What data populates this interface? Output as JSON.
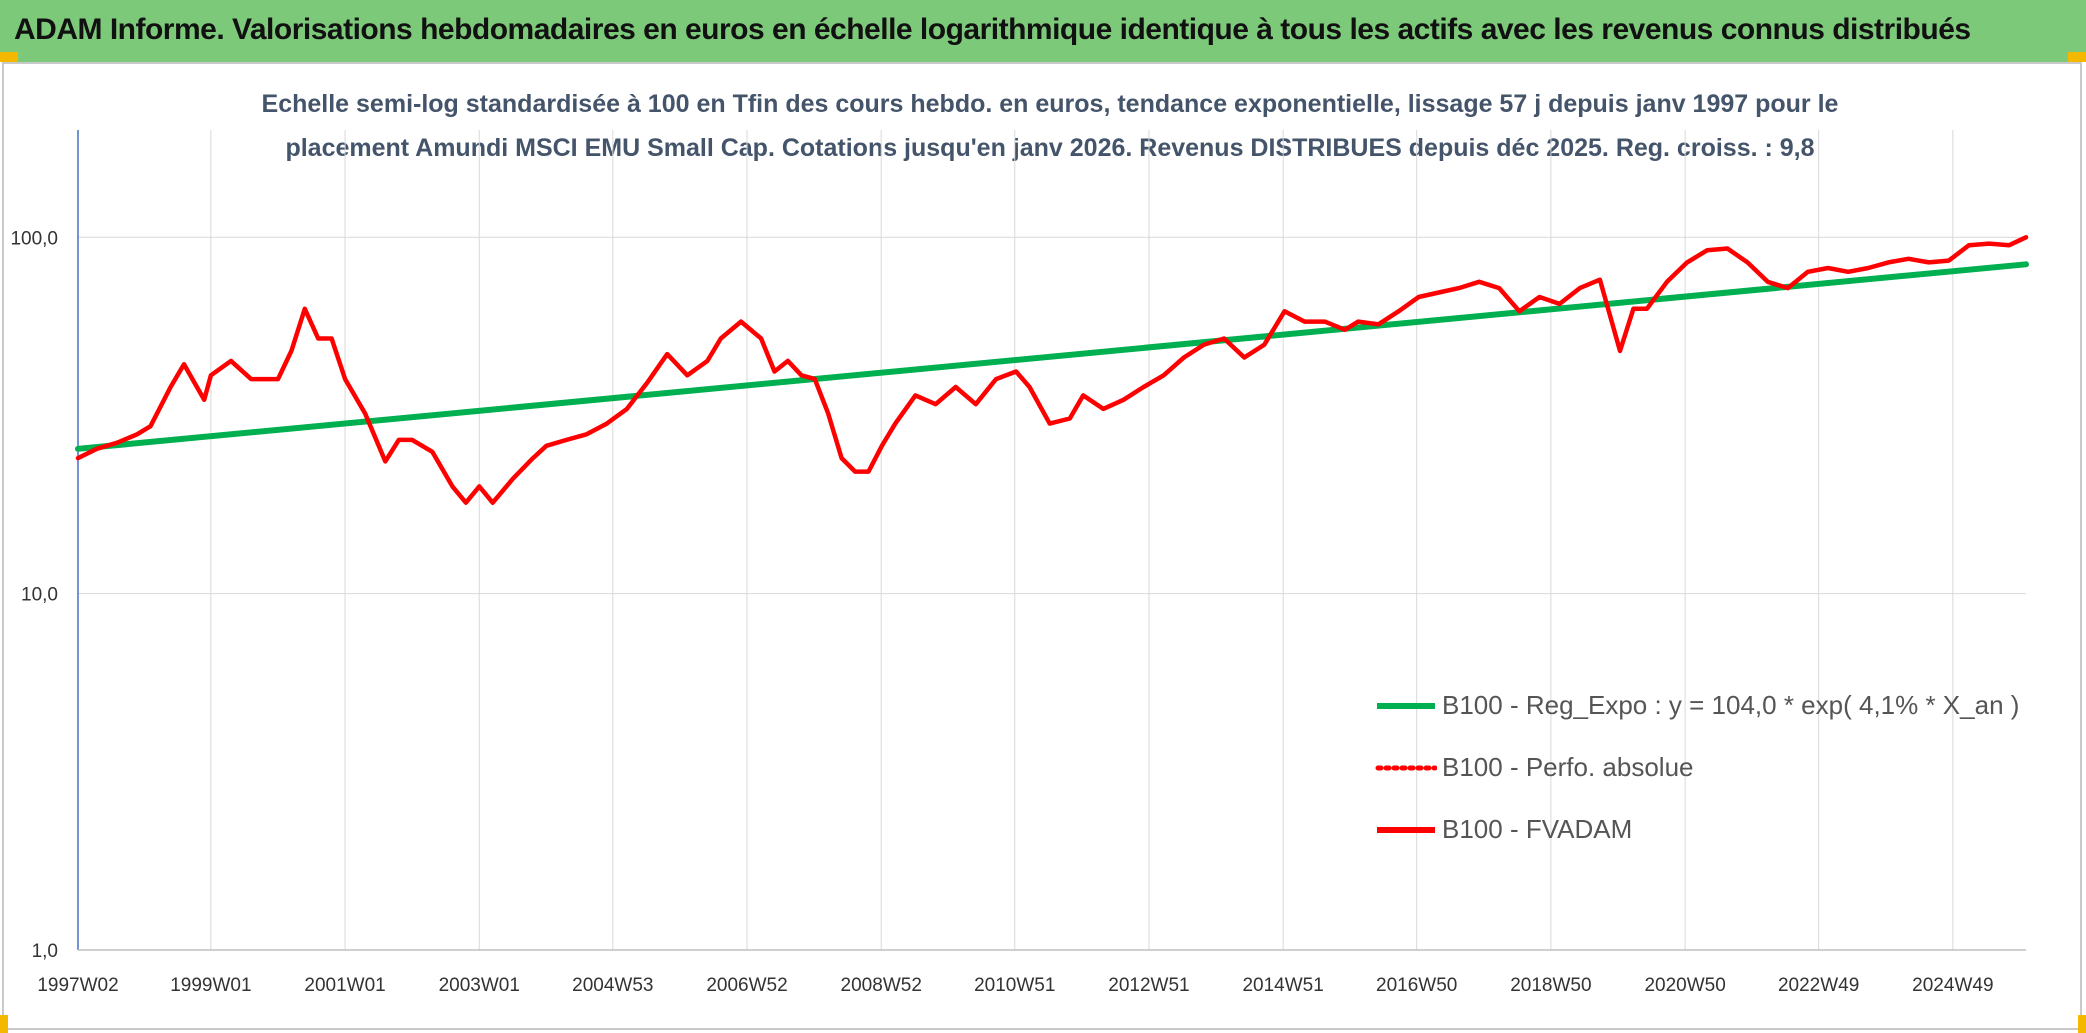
{
  "header": {
    "title": "ADAM Informe. Valorisations hebdomadaires en euros en échelle logarithmique identique à tous les actifs avec les revenus connus distribués"
  },
  "colors": {
    "banner": "#7dc97a",
    "trend": "#00b050",
    "series": "#ff0000",
    "grid": "#d9d9d9",
    "subtitle": "#44546a"
  },
  "chart_data": {
    "type": "line",
    "title_lines": [
      "Echelle semi-log standardisée à 100 en Tfin des cours hebdo. en euros, tendance exponentielle, lissage 57 j depuis janv 1997 pour le",
      "placement Amundi MSCI EMU Small Cap. Cotations jusqu'en janv 2026. Revenus DISTRIBUES depuis déc 2025. Reg. croiss. : 9,8"
    ],
    "y_scale": "log",
    "ylim": [
      1,
      200
    ],
    "y_ticks": [
      {
        "value": 1,
        "label": "1,0"
      },
      {
        "value": 10,
        "label": "10,0"
      },
      {
        "value": 100,
        "label": "100,0"
      }
    ],
    "x_range": [
      1997.02,
      2026.05
    ],
    "x_ticks": [
      {
        "value": 1997.02,
        "label": "1997W02"
      },
      {
        "value": 1999.0,
        "label": "1999W01"
      },
      {
        "value": 2001.0,
        "label": "2001W01"
      },
      {
        "value": 2003.0,
        "label": "2003W01"
      },
      {
        "value": 2004.99,
        "label": "2004W53"
      },
      {
        "value": 2006.99,
        "label": "2006W52"
      },
      {
        "value": 2008.99,
        "label": "2008W52"
      },
      {
        "value": 2010.98,
        "label": "2010W51"
      },
      {
        "value": 2012.98,
        "label": "2012W51"
      },
      {
        "value": 2014.98,
        "label": "2014W51"
      },
      {
        "value": 2016.97,
        "label": "2016W50"
      },
      {
        "value": 2018.97,
        "label": "2018W50"
      },
      {
        "value": 2020.97,
        "label": "2020W50"
      },
      {
        "value": 2022.96,
        "label": "2022W49"
      },
      {
        "value": 2024.96,
        "label": "2024W49"
      }
    ],
    "grid": true,
    "legend_position": "bottom-right",
    "series": [
      {
        "name": "B100 - Reg_Expo : y = 104,0 * exp( 4,1% *  X_an )",
        "style": "solid-green",
        "x": [
          1997.02,
          2026.05
        ],
        "y": [
          25.5,
          84.0
        ]
      },
      {
        "name": "B100 - Perfo. absolue",
        "style": "dotted-red",
        "x": [],
        "y": []
      },
      {
        "name": "B100 - FVADAM",
        "style": "solid-red",
        "x": [
          1997.02,
          1997.3,
          1997.6,
          1997.9,
          1998.1,
          1998.4,
          1998.6,
          1998.9,
          1999.0,
          1999.3,
          1999.6,
          1999.8,
          2000.0,
          2000.2,
          2000.4,
          2000.6,
          2000.8,
          2001.0,
          2001.3,
          2001.6,
          2001.8,
          2002.0,
          2002.3,
          2002.6,
          2002.8,
          2003.0,
          2003.2,
          2003.5,
          2003.8,
          2004.0,
          2004.3,
          2004.6,
          2004.9,
          2005.2,
          2005.5,
          2005.8,
          2006.1,
          2006.4,
          2006.6,
          2006.9,
          2007.2,
          2007.4,
          2007.6,
          2007.8,
          2008.0,
          2008.2,
          2008.4,
          2008.6,
          2008.8,
          2009.0,
          2009.2,
          2009.5,
          2009.8,
          2010.1,
          2010.4,
          2010.7,
          2011.0,
          2011.2,
          2011.5,
          2011.8,
          2012.0,
          2012.3,
          2012.6,
          2012.9,
          2013.2,
          2013.5,
          2013.8,
          2014.1,
          2014.4,
          2014.7,
          2015.0,
          2015.3,
          2015.6,
          2015.9,
          2016.1,
          2016.4,
          2016.7,
          2017.0,
          2017.3,
          2017.6,
          2017.9,
          2018.2,
          2018.5,
          2018.8,
          2019.1,
          2019.4,
          2019.7,
          2020.0,
          2020.2,
          2020.4,
          2020.7,
          2021.0,
          2021.3,
          2021.6,
          2021.9,
          2022.2,
          2022.5,
          2022.8,
          2023.1,
          2023.4,
          2023.7,
          2024.0,
          2024.3,
          2024.6,
          2024.9,
          2025.2,
          2025.5,
          2025.8,
          2026.05
        ],
        "y": [
          24.0,
          25.5,
          26.5,
          28.0,
          29.5,
          38.0,
          44.0,
          35.0,
          41.0,
          45.0,
          40.0,
          40.0,
          40.0,
          48.0,
          63.0,
          52.0,
          52.0,
          40.0,
          32.0,
          23.5,
          27.0,
          27.0,
          25.0,
          20.0,
          18.0,
          20.0,
          18.0,
          21.0,
          24.0,
          26.0,
          27.0,
          28.0,
          30.0,
          33.0,
          39.0,
          47.0,
          41.0,
          45.0,
          52.0,
          58.0,
          52.0,
          42.0,
          45.0,
          41.0,
          40.0,
          32.0,
          24.0,
          22.0,
          22.0,
          26.0,
          30.0,
          36.0,
          34.0,
          38.0,
          34.0,
          40.0,
          42.0,
          38.0,
          30.0,
          31.0,
          36.0,
          33.0,
          35.0,
          38.0,
          41.0,
          46.0,
          50.0,
          52.0,
          46.0,
          50.0,
          62.0,
          58.0,
          58.0,
          55.0,
          58.0,
          57.0,
          62.0,
          68.0,
          70.0,
          72.0,
          75.0,
          72.0,
          62.0,
          68.0,
          65.0,
          72.0,
          76.0,
          48.0,
          63.0,
          63.0,
          75.0,
          85.0,
          92.0,
          93.0,
          85.0,
          75.0,
          72.0,
          80.0,
          82.0,
          80.0,
          82.0,
          85.0,
          87.0,
          85.0,
          86.0,
          95.0,
          96.0,
          95.0,
          100.0
        ]
      }
    ]
  }
}
